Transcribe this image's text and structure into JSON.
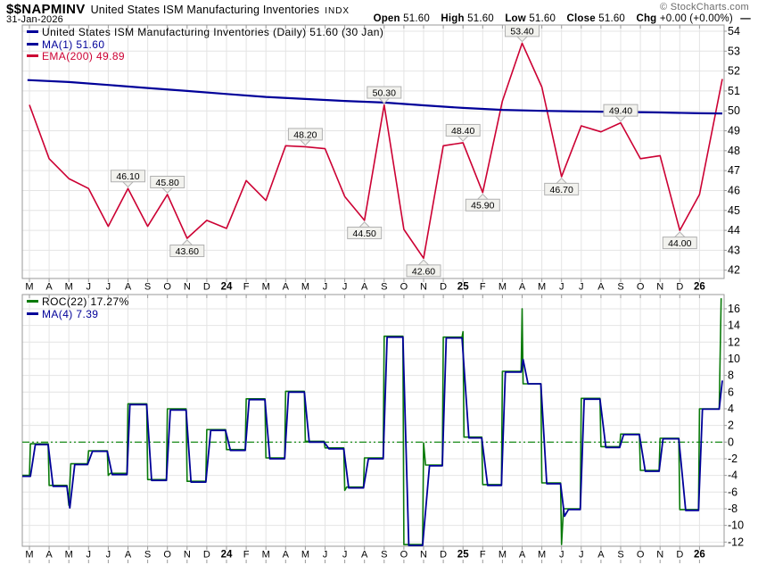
{
  "header": {
    "symbol": "$$NAPMINV",
    "title": "United States ISM Manufacturing Inventories",
    "exchange": "INDX",
    "date": "31-Jan-2026",
    "copyright": "© StockCharts.com",
    "quote": {
      "open_label": "Open",
      "open": "51.60",
      "high_label": "High",
      "high": "51.60",
      "low_label": "Low",
      "low": "51.60",
      "close_label": "Close",
      "close": "51.60",
      "chg_label": "Chg",
      "chg": "+0.00 (+0.00%)",
      "dash": "—"
    }
  },
  "main_panel": {
    "legend": [
      {
        "label": "United States ISM Manufacturing Inventories (Daily) 51.60 (30 Jan)",
        "marker_color": "#000099",
        "text_color": "#000000"
      },
      {
        "label": "MA(1) 51.60",
        "marker_color": "#000099",
        "text_color": "#000099"
      },
      {
        "label": "EMA(200) 49.89",
        "marker_color": "#cc0033",
        "text_color": "#cc0033"
      }
    ]
  },
  "roc_panel": {
    "legend": [
      {
        "label": "ROC(22) 17.27%",
        "marker_color": "#0a7a0a",
        "text_color": "#000000"
      },
      {
        "label": "MA(4) 7.39",
        "marker_color": "#000099",
        "text_color": "#000099"
      }
    ]
  },
  "colors": {
    "price_line": "#000099",
    "ema_line": "#cc0033",
    "roc_line": "#0a7a0a",
    "ma_line": "#000099",
    "zero_line": "#008000",
    "grid": "#e4e4e4",
    "border": "#9a9a9a",
    "callout_bg": "#f2f2ee",
    "callout_border": "#b0b0b0"
  },
  "chart_data": [
    {
      "type": "line",
      "title": "United States ISM Manufacturing Inventories (Daily)",
      "x_tick_labels": [
        "M",
        "A",
        "M",
        "J",
        "J",
        "A",
        "S",
        "O",
        "N",
        "D",
        "24",
        "F",
        "M",
        "A",
        "M",
        "J",
        "J",
        "A",
        "S",
        "O",
        "N",
        "D",
        "25",
        "F",
        "M",
        "A",
        "M",
        "J",
        "J",
        "A",
        "S",
        "O",
        "N",
        "D",
        "26"
      ],
      "x_note": "month index, 0 = Mar '23 tick; 35.16 = 30-Jan-2026 plot edge",
      "ylim": [
        42,
        54
      ],
      "y_ticks": [
        54,
        53,
        52,
        51,
        50,
        49,
        48,
        47,
        46,
        45,
        44,
        43,
        42
      ],
      "grid": true,
      "legend_position": "top-left",
      "series": [
        {
          "name": "ISM Manufacturing Inventories (Daily)",
          "points": [
            [
              0,
              50.3
            ],
            [
              1,
              47.6
            ],
            [
              2,
              46.6
            ],
            [
              3,
              46.1
            ],
            [
              4,
              44.2
            ],
            [
              5,
              46.1
            ],
            [
              6,
              44.2
            ],
            [
              7,
              45.8
            ],
            [
              8,
              43.6
            ],
            [
              9,
              44.5
            ],
            [
              10,
              44.1
            ],
            [
              11,
              46.5
            ],
            [
              12,
              45.5
            ],
            [
              13,
              48.25
            ],
            [
              14,
              48.2
            ],
            [
              15,
              48.1
            ],
            [
              16,
              45.7
            ],
            [
              17,
              44.5
            ],
            [
              18,
              50.3
            ],
            [
              19,
              44.05
            ],
            [
              20,
              42.6
            ],
            [
              21,
              48.25
            ],
            [
              22,
              48.4
            ],
            [
              23,
              45.9
            ],
            [
              24,
              50.5
            ],
            [
              25,
              53.4
            ],
            [
              26,
              51.2
            ],
            [
              27,
              46.7
            ],
            [
              28,
              49.25
            ],
            [
              29,
              48.95
            ],
            [
              30,
              49.4
            ],
            [
              31,
              47.6
            ],
            [
              32,
              47.75
            ],
            [
              33,
              44.0
            ],
            [
              34,
              45.8
            ],
            [
              35.16,
              51.6
            ]
          ]
        },
        {
          "name": "EMA(200)",
          "points": [
            [
              -0.1,
              51.55
            ],
            [
              2,
              51.45
            ],
            [
              4,
              51.3
            ],
            [
              6,
              51.15
            ],
            [
              8,
              51.0
            ],
            [
              10,
              50.85
            ],
            [
              12,
              50.7
            ],
            [
              14,
              50.6
            ],
            [
              16,
              50.5
            ],
            [
              18,
              50.42
            ],
            [
              20,
              50.28
            ],
            [
              22,
              50.15
            ],
            [
              24,
              50.05
            ],
            [
              26,
              50.0
            ],
            [
              28,
              49.97
            ],
            [
              30,
              49.95
            ],
            [
              32,
              49.92
            ],
            [
              34,
              49.88
            ],
            [
              35.16,
              49.87
            ]
          ]
        }
      ],
      "annotations": [
        {
          "x": 5,
          "label": "46.10",
          "pos": "above"
        },
        {
          "x": 7,
          "label": "45.80",
          "pos": "above"
        },
        {
          "x": 8,
          "label": "43.60",
          "pos": "below"
        },
        {
          "x": 14,
          "label": "48.20",
          "pos": "above"
        },
        {
          "x": 17,
          "label": "44.50",
          "pos": "below"
        },
        {
          "x": 18,
          "label": "50.30",
          "pos": "above"
        },
        {
          "x": 20,
          "label": "42.60",
          "pos": "below"
        },
        {
          "x": 22,
          "label": "48.40",
          "pos": "above"
        },
        {
          "x": 23,
          "label": "45.90",
          "pos": "below"
        },
        {
          "x": 25,
          "label": "53.40",
          "pos": "above"
        },
        {
          "x": 27,
          "label": "46.70",
          "pos": "below"
        },
        {
          "x": 30,
          "label": "49.40",
          "pos": "above"
        },
        {
          "x": 33,
          "label": "44.00",
          "pos": "below"
        }
      ]
    },
    {
      "type": "line",
      "title": "ROC(22) with MA(4)",
      "x_tick_labels": [
        "M",
        "A",
        "M",
        "J",
        "J",
        "A",
        "S",
        "O",
        "N",
        "D",
        "24",
        "F",
        "M",
        "A",
        "M",
        "J",
        "J",
        "A",
        "S",
        "O",
        "N",
        "D",
        "25",
        "F",
        "M",
        "A",
        "M",
        "J",
        "J",
        "A",
        "S",
        "O",
        "N",
        "D",
        "26"
      ],
      "ylim": [
        -13.5,
        17.7
      ],
      "y_ticks": [
        16,
        14,
        12,
        10,
        8,
        6,
        4,
        2,
        0,
        -2,
        -4,
        -6,
        -8,
        -10,
        -12
      ],
      "zero_line": true,
      "grid": true,
      "series": [
        {
          "name": "ROC(22)",
          "points": [
            [
              -0.36,
              -4.0
            ],
            [
              0,
              -4.0
            ],
            [
              0.05,
              -0.2
            ],
            [
              0.95,
              -0.2
            ],
            [
              1.0,
              -5.2
            ],
            [
              1.9,
              -5.2
            ],
            [
              2.0,
              -7.6
            ],
            [
              2.1,
              -2.6
            ],
            [
              2.95,
              -2.6
            ],
            [
              3.0,
              -1.05
            ],
            [
              3.95,
              -1.05
            ],
            [
              4.0,
              -4.0
            ],
            [
              4.1,
              -3.75
            ],
            [
              4.95,
              -3.75
            ],
            [
              5.0,
              4.6
            ],
            [
              5.95,
              4.6
            ],
            [
              6.0,
              -4.5
            ],
            [
              6.95,
              -4.5
            ],
            [
              7.0,
              4.0
            ],
            [
              7.95,
              4.0
            ],
            [
              8.0,
              -4.7
            ],
            [
              8.95,
              -4.7
            ],
            [
              9.0,
              1.5
            ],
            [
              9.95,
              1.5
            ],
            [
              10.0,
              -0.9
            ],
            [
              10.95,
              -0.9
            ],
            [
              11.0,
              5.2
            ],
            [
              11.95,
              5.2
            ],
            [
              12.0,
              -1.9
            ],
            [
              12.95,
              -1.9
            ],
            [
              13.0,
              6.1
            ],
            [
              13.95,
              6.1
            ],
            [
              14.0,
              0.1
            ],
            [
              14.95,
              0.1
            ],
            [
              15.0,
              -0.7
            ],
            [
              15.95,
              -0.7
            ],
            [
              16.0,
              -5.8
            ],
            [
              16.1,
              -5.4
            ],
            [
              16.95,
              -5.4
            ],
            [
              17.0,
              -1.9
            ],
            [
              17.95,
              -1.9
            ],
            [
              18.0,
              12.7
            ],
            [
              18.95,
              12.7
            ],
            [
              19.0,
              -12.3
            ],
            [
              19.95,
              -12.3
            ],
            [
              20.0,
              -0.1
            ],
            [
              20.1,
              -2.75
            ],
            [
              20.95,
              -2.75
            ],
            [
              21.0,
              12.6
            ],
            [
              21.95,
              12.6
            ],
            [
              22.0,
              13.25
            ],
            [
              22.05,
              0.6
            ],
            [
              22.95,
              0.6
            ],
            [
              23.0,
              -5.1
            ],
            [
              23.95,
              -5.1
            ],
            [
              24.0,
              8.5
            ],
            [
              24.95,
              8.5
            ],
            [
              25.0,
              16.0
            ],
            [
              25.05,
              7.0
            ],
            [
              25.95,
              7.0
            ],
            [
              26.0,
              -4.9
            ],
            [
              26.95,
              -4.9
            ],
            [
              27.0,
              -12.3
            ],
            [
              27.1,
              -8.0
            ],
            [
              27.95,
              -8.0
            ],
            [
              28.0,
              5.25
            ],
            [
              28.95,
              5.25
            ],
            [
              29.0,
              -0.55
            ],
            [
              29.95,
              -0.55
            ],
            [
              30.0,
              0.96
            ],
            [
              30.95,
              0.96
            ],
            [
              31.0,
              -3.4
            ],
            [
              31.95,
              -3.4
            ],
            [
              32.0,
              0.46
            ],
            [
              32.95,
              0.46
            ],
            [
              33.0,
              -8.1
            ],
            [
              33.95,
              -8.1
            ],
            [
              34.0,
              4.0
            ],
            [
              35.0,
              4.0
            ],
            [
              35.1,
              17.27
            ]
          ]
        },
        {
          "name": "MA(4)",
          "points": [
            [
              -0.36,
              -4.1
            ],
            [
              0.05,
              -4.1
            ],
            [
              0.3,
              -0.3
            ],
            [
              0.95,
              -0.3
            ],
            [
              1.2,
              -5.3
            ],
            [
              1.9,
              -5.3
            ],
            [
              2.05,
              -7.9
            ],
            [
              2.3,
              -2.7
            ],
            [
              2.95,
              -2.7
            ],
            [
              3.2,
              -1.1
            ],
            [
              3.95,
              -1.1
            ],
            [
              4.2,
              -3.9
            ],
            [
              4.95,
              -3.9
            ],
            [
              5.1,
              4.5
            ],
            [
              5.95,
              4.5
            ],
            [
              6.2,
              -4.6
            ],
            [
              6.95,
              -4.6
            ],
            [
              7.15,
              3.85
            ],
            [
              7.95,
              3.85
            ],
            [
              8.2,
              -4.8
            ],
            [
              8.95,
              -4.8
            ],
            [
              9.2,
              1.4
            ],
            [
              9.95,
              1.4
            ],
            [
              10.2,
              -1.0
            ],
            [
              10.95,
              -1.0
            ],
            [
              11.15,
              5.1
            ],
            [
              11.95,
              5.1
            ],
            [
              12.2,
              -2.0
            ],
            [
              12.95,
              -2.0
            ],
            [
              13.15,
              6.0
            ],
            [
              13.95,
              6.0
            ],
            [
              14.2,
              0.0
            ],
            [
              14.95,
              0.0
            ],
            [
              15.2,
              -0.8
            ],
            [
              15.95,
              -0.8
            ],
            [
              16.2,
              -5.5
            ],
            [
              16.95,
              -5.5
            ],
            [
              17.2,
              -2.0
            ],
            [
              17.95,
              -2.0
            ],
            [
              18.15,
              12.6
            ],
            [
              18.95,
              12.6
            ],
            [
              19.25,
              -12.4
            ],
            [
              19.95,
              -12.4
            ],
            [
              20.3,
              -2.85
            ],
            [
              20.95,
              -2.85
            ],
            [
              21.15,
              12.5
            ],
            [
              21.95,
              12.5
            ],
            [
              22.3,
              0.5
            ],
            [
              22.95,
              0.5
            ],
            [
              23.25,
              -5.2
            ],
            [
              23.95,
              -5.2
            ],
            [
              24.15,
              8.4
            ],
            [
              24.95,
              8.4
            ],
            [
              25.05,
              9.9
            ],
            [
              25.3,
              7.0
            ],
            [
              25.95,
              7.0
            ],
            [
              26.25,
              -5.0
            ],
            [
              26.95,
              -5.0
            ],
            [
              27.15,
              -8.9
            ],
            [
              27.35,
              -8.1
            ],
            [
              27.95,
              -8.1
            ],
            [
              28.15,
              5.15
            ],
            [
              28.95,
              5.15
            ],
            [
              29.25,
              -0.65
            ],
            [
              29.95,
              -0.65
            ],
            [
              30.15,
              0.9
            ],
            [
              30.95,
              0.9
            ],
            [
              31.25,
              -3.5
            ],
            [
              31.95,
              -3.5
            ],
            [
              32.15,
              0.4
            ],
            [
              32.95,
              0.4
            ],
            [
              33.3,
              -8.2
            ],
            [
              33.95,
              -8.2
            ],
            [
              34.15,
              3.95
            ],
            [
              35.0,
              3.95
            ],
            [
              35.16,
              7.39
            ]
          ]
        }
      ]
    }
  ]
}
